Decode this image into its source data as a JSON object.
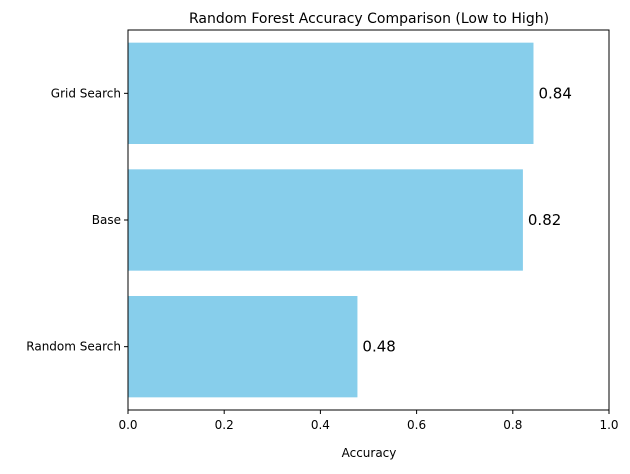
{
  "chart_data": {
    "type": "bar",
    "orientation": "horizontal",
    "title": "Random Forest Accuracy Comparison (Low to High)",
    "xlabel": "Accuracy",
    "ylabel": "",
    "categories": [
      "Random Search",
      "Base",
      "Grid Search"
    ],
    "values": [
      0.477,
      0.821,
      0.843
    ],
    "value_labels": [
      "0.48",
      "0.82",
      "0.84"
    ],
    "xlim": [
      0,
      1
    ],
    "xticks": [
      0,
      0.2,
      0.4,
      0.6,
      0.8,
      1.0
    ],
    "xtick_labels": [
      "0.0",
      "0.2",
      "0.4",
      "0.6",
      "0.8",
      "1.0"
    ],
    "grid": false,
    "legend": "none",
    "bar_color": "#87CEEB",
    "text_color": "#000000"
  }
}
